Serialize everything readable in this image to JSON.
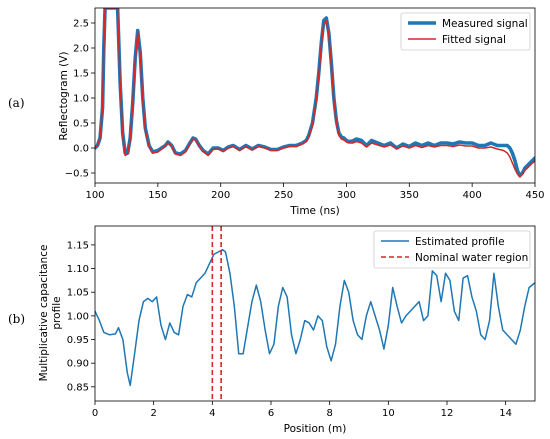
{
  "chart_data": [
    {
      "type": "line",
      "panel_label": "(a)",
      "xlabel": "Time (ns)",
      "ylabel": "Reflectogram (V)",
      "xlim": [
        100,
        450
      ],
      "ylim": [
        -0.7,
        2.8
      ],
      "xticks": [
        100,
        150,
        200,
        250,
        300,
        350,
        400,
        450
      ],
      "yticks": [
        -0.5,
        0.0,
        0.5,
        1.0,
        1.5,
        2.0,
        2.5
      ],
      "ytick_labels": [
        "−0.5",
        "0.0",
        "0.5",
        "1.0",
        "1.5",
        "2.0",
        "2.5"
      ],
      "grid": false,
      "legend_position": "top-right",
      "series": [
        {
          "name": "Measured signal",
          "color": "#1f77b4",
          "x": [
            100,
            102,
            104,
            106,
            107,
            108,
            110,
            112,
            113,
            114,
            116,
            118,
            120,
            122,
            124,
            126,
            128,
            130,
            132,
            134,
            136,
            138,
            140,
            143,
            146,
            150,
            153,
            156,
            158,
            161,
            164,
            168,
            172,
            175,
            178,
            180,
            183,
            186,
            190,
            194,
            198,
            202,
            206,
            210,
            215,
            220,
            225,
            230,
            235,
            240,
            245,
            250,
            255,
            260,
            265,
            268,
            270,
            273,
            276,
            278,
            280,
            282,
            284,
            286,
            288,
            290,
            292,
            294,
            296,
            298,
            300,
            302,
            305,
            308,
            312,
            316,
            320,
            325,
            330,
            335,
            340,
            345,
            350,
            355,
            360,
            365,
            370,
            375,
            380,
            385,
            390,
            395,
            400,
            405,
            410,
            415,
            420,
            425,
            428,
            430,
            432,
            434,
            436,
            438,
            440,
            442,
            444,
            446,
            448,
            450
          ],
          "y": [
            0.0,
            0.05,
            0.2,
            0.8,
            2.0,
            2.8,
            2.8,
            2.8,
            2.8,
            2.8,
            2.8,
            2.8,
            1.3,
            0.3,
            -0.1,
            -0.1,
            0.2,
            0.9,
            1.8,
            2.35,
            1.9,
            1.0,
            0.4,
            0.05,
            -0.08,
            -0.05,
            0.0,
            0.05,
            0.12,
            0.05,
            -0.1,
            -0.12,
            -0.05,
            0.08,
            0.2,
            0.18,
            0.05,
            -0.05,
            -0.12,
            0.0,
            0.0,
            -0.05,
            0.02,
            0.05,
            -0.03,
            0.05,
            -0.02,
            0.05,
            0.02,
            -0.03,
            -0.03,
            0.02,
            0.05,
            0.05,
            0.1,
            0.15,
            0.25,
            0.5,
            1.0,
            1.5,
            2.1,
            2.55,
            2.6,
            2.3,
            1.7,
            1.0,
            0.55,
            0.3,
            0.22,
            0.2,
            0.15,
            0.13,
            0.14,
            0.18,
            0.15,
            0.05,
            0.15,
            0.1,
            0.05,
            0.1,
            0.0,
            0.08,
            0.03,
            0.1,
            0.05,
            0.1,
            0.05,
            0.1,
            0.1,
            0.08,
            0.12,
            0.1,
            0.1,
            0.05,
            0.05,
            0.1,
            0.05,
            0.05,
            0.05,
            0.0,
            -0.1,
            -0.25,
            -0.45,
            -0.55,
            -0.5,
            -0.4,
            -0.35,
            -0.3,
            -0.25,
            -0.2
          ]
        },
        {
          "name": "Fitted signal",
          "color": "#d62728",
          "x": [
            100,
            102,
            104,
            106,
            107,
            108,
            110,
            112,
            113,
            114,
            116,
            118,
            120,
            122,
            124,
            126,
            128,
            130,
            132,
            134,
            136,
            138,
            140,
            143,
            146,
            150,
            153,
            156,
            158,
            161,
            164,
            168,
            172,
            175,
            178,
            180,
            183,
            186,
            190,
            194,
            198,
            202,
            206,
            210,
            215,
            220,
            225,
            230,
            235,
            240,
            245,
            250,
            255,
            260,
            265,
            268,
            270,
            273,
            276,
            278,
            280,
            282,
            284,
            286,
            288,
            290,
            292,
            294,
            296,
            298,
            300,
            302,
            305,
            308,
            312,
            316,
            320,
            325,
            330,
            335,
            340,
            345,
            350,
            355,
            360,
            365,
            370,
            375,
            380,
            385,
            390,
            395,
            400,
            405,
            410,
            415,
            420,
            425,
            428,
            430,
            432,
            434,
            436,
            438,
            440,
            442,
            444,
            446,
            448,
            450
          ],
          "y": [
            0.0,
            0.05,
            0.2,
            0.8,
            2.0,
            2.8,
            2.8,
            2.8,
            2.8,
            2.8,
            2.8,
            2.8,
            1.3,
            0.25,
            -0.15,
            -0.12,
            0.18,
            0.85,
            1.75,
            2.3,
            1.85,
            0.95,
            0.35,
            0.02,
            -0.1,
            -0.08,
            -0.02,
            0.05,
            0.1,
            0.04,
            -0.12,
            -0.15,
            -0.08,
            0.06,
            0.18,
            0.16,
            0.03,
            -0.07,
            -0.15,
            -0.03,
            -0.02,
            -0.07,
            0.0,
            0.03,
            -0.05,
            0.03,
            -0.04,
            0.03,
            0.0,
            -0.05,
            -0.05,
            0.0,
            0.03,
            0.03,
            0.08,
            0.13,
            0.22,
            0.45,
            0.95,
            1.45,
            2.05,
            2.5,
            2.55,
            2.25,
            1.65,
            0.95,
            0.5,
            0.25,
            0.18,
            0.16,
            0.12,
            0.1,
            0.1,
            0.13,
            0.1,
            0.02,
            0.1,
            0.06,
            0.02,
            0.06,
            -0.02,
            0.04,
            0.0,
            0.05,
            0.01,
            0.05,
            0.02,
            0.05,
            0.05,
            0.03,
            0.06,
            0.04,
            0.04,
            0.0,
            0.0,
            0.02,
            -0.02,
            -0.05,
            -0.1,
            -0.18,
            -0.3,
            -0.42,
            -0.52,
            -0.58,
            -0.52,
            -0.45,
            -0.4,
            -0.35,
            -0.3,
            -0.26
          ]
        }
      ]
    },
    {
      "type": "line",
      "panel_label": "(b)",
      "xlabel": "Position (m)",
      "ylabel": "Multiplicative capacitance profile",
      "ylabel_lines": [
        "Multiplicative capacitance",
        "profile"
      ],
      "xlim": [
        0,
        15
      ],
      "ylim": [
        0.82,
        1.19
      ],
      "xticks": [
        0,
        2,
        4,
        6,
        8,
        10,
        12,
        14
      ],
      "yticks": [
        0.85,
        0.9,
        0.95,
        1.0,
        1.05,
        1.1,
        1.15
      ],
      "ytick_labels": [
        "0.85",
        "0.90",
        "0.95",
        "1.00",
        "1.05",
        "1.10",
        "1.15"
      ],
      "grid": false,
      "legend_position": "top-right",
      "series": [
        {
          "name": "Estimated profile",
          "color": "#1f77b4",
          "x": [
            0,
            0.15,
            0.3,
            0.5,
            0.7,
            0.8,
            0.95,
            1.1,
            1.2,
            1.35,
            1.5,
            1.65,
            1.8,
            1.95,
            2.1,
            2.25,
            2.4,
            2.55,
            2.7,
            2.85,
            3.0,
            3.15,
            3.3,
            3.45,
            3.6,
            3.75,
            3.9,
            4.05,
            4.2,
            4.35,
            4.45,
            4.6,
            4.75,
            4.9,
            5.05,
            5.2,
            5.35,
            5.5,
            5.65,
            5.8,
            5.95,
            6.1,
            6.25,
            6.4,
            6.55,
            6.7,
            6.85,
            7.0,
            7.15,
            7.3,
            7.45,
            7.6,
            7.75,
            7.9,
            8.05,
            8.2,
            8.35,
            8.5,
            8.65,
            8.8,
            8.95,
            9.1,
            9.25,
            9.4,
            9.55,
            9.7,
            9.85,
            10.0,
            10.15,
            10.3,
            10.45,
            10.6,
            10.75,
            10.9,
            11.05,
            11.2,
            11.35,
            11.5,
            11.65,
            11.8,
            11.95,
            12.1,
            12.25,
            12.4,
            12.55,
            12.7,
            12.85,
            13.0,
            13.15,
            13.3,
            13.45,
            13.6,
            13.75,
            13.9,
            14.05,
            14.2,
            14.35,
            14.5,
            14.65,
            14.8,
            15.0
          ],
          "y": [
            1.01,
            0.99,
            0.965,
            0.96,
            0.962,
            0.975,
            0.95,
            0.88,
            0.853,
            0.92,
            0.99,
            1.03,
            1.037,
            1.03,
            1.04,
            0.98,
            0.95,
            0.985,
            0.965,
            0.96,
            1.02,
            1.045,
            1.04,
            1.07,
            1.08,
            1.09,
            1.11,
            1.13,
            1.135,
            1.14,
            1.135,
            1.09,
            1.02,
            0.92,
            0.92,
            0.975,
            1.03,
            1.065,
            1.03,
            0.97,
            0.92,
            0.94,
            1.02,
            1.06,
            1.04,
            0.96,
            0.92,
            0.95,
            0.99,
            0.985,
            0.97,
            1.0,
            0.99,
            0.935,
            0.905,
            0.94,
            1.02,
            1.075,
            1.05,
            0.99,
            0.96,
            0.95,
            1.0,
            1.03,
            1.0,
            0.97,
            0.93,
            0.98,
            1.06,
            1.02,
            0.985,
            1.0,
            1.01,
            1.02,
            1.03,
            0.99,
            1.0,
            1.095,
            1.085,
            1.03,
            1.09,
            1.075,
            1.01,
            0.99,
            1.08,
            1.085,
            1.04,
            1.01,
            0.96,
            0.95,
            0.99,
            1.09,
            1.02,
            0.97,
            0.96,
            0.95,
            0.94,
            0.97,
            1.02,
            1.06,
            1.07
          ]
        },
        {
          "name": "Nominal water region",
          "color": "#d62728",
          "style": "dashed",
          "x": [
            4.0,
            4.3
          ]
        }
      ]
    }
  ]
}
